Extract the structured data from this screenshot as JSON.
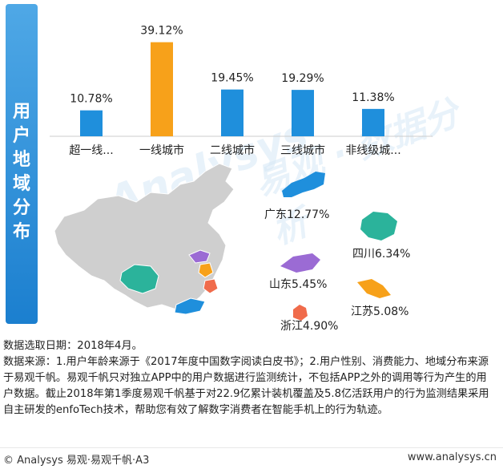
{
  "side_title": "用户地域分布",
  "chart_data": {
    "type": "bar",
    "categories": [
      "超一线...",
      "一线城市",
      "二线城市",
      "三线城市",
      "非线级城..."
    ],
    "values": [
      10.78,
      39.12,
      19.45,
      19.29,
      11.38
    ],
    "value_labels": [
      "10.78%",
      "39.12%",
      "19.45%",
      "19.29%",
      "11.38%"
    ],
    "highlight_index": 1,
    "ylim": [
      0,
      40
    ],
    "colors": {
      "default": "#1f8fdc",
      "highlight": "#f7a11a"
    },
    "title": "",
    "xlabel": "",
    "ylabel": ""
  },
  "map": {
    "provinces": [
      {
        "name": "广东",
        "label": "广东12.77%",
        "value": 12.77,
        "color": "#1f8fdc",
        "icon": "guangdong-shape"
      },
      {
        "name": "四川",
        "label": "四川6.34%",
        "value": 6.34,
        "color": "#2bb39b",
        "icon": "sichuan-shape"
      },
      {
        "name": "山东",
        "label": "山东5.45%",
        "value": 5.45,
        "color": "#9b6bd4",
        "icon": "shandong-shape"
      },
      {
        "name": "江苏",
        "label": "江苏5.08%",
        "value": 5.08,
        "color": "#f7a11a",
        "icon": "jiangsu-shape"
      },
      {
        "name": "浙江",
        "label": "浙江4.90%",
        "value": 4.9,
        "color": "#f06b4b",
        "icon": "zhejiang-shape"
      }
    ],
    "base_color": "#cfcfcf"
  },
  "notes": [
    "数据选取日期：2018年4月。",
    "数据来源：1.用户年龄来源于《2017年度中国数字阅读白皮书》；2.用户性别、消费能力、地域分布来源于易观千帆。易观千帆只对独立APP中的用户数据进行监测统计，不包括APP之外的调用等行为产生的用户数据。截止2018年第1季度易观千帆基于对22.9亿累计装机覆盖及5.8亿活跃用户的行为监测结果采用自主研发的enfoTech技术，帮助您有效了解数字消费者在智能手机上的行为轨迹。"
  ],
  "footer": {
    "left": "© Analysys 易观·易观千帆·A3",
    "right": "www.analysys.cn"
  },
  "watermark": {
    "latin": "Analysys",
    "cn": "易观 · 数据分析"
  }
}
